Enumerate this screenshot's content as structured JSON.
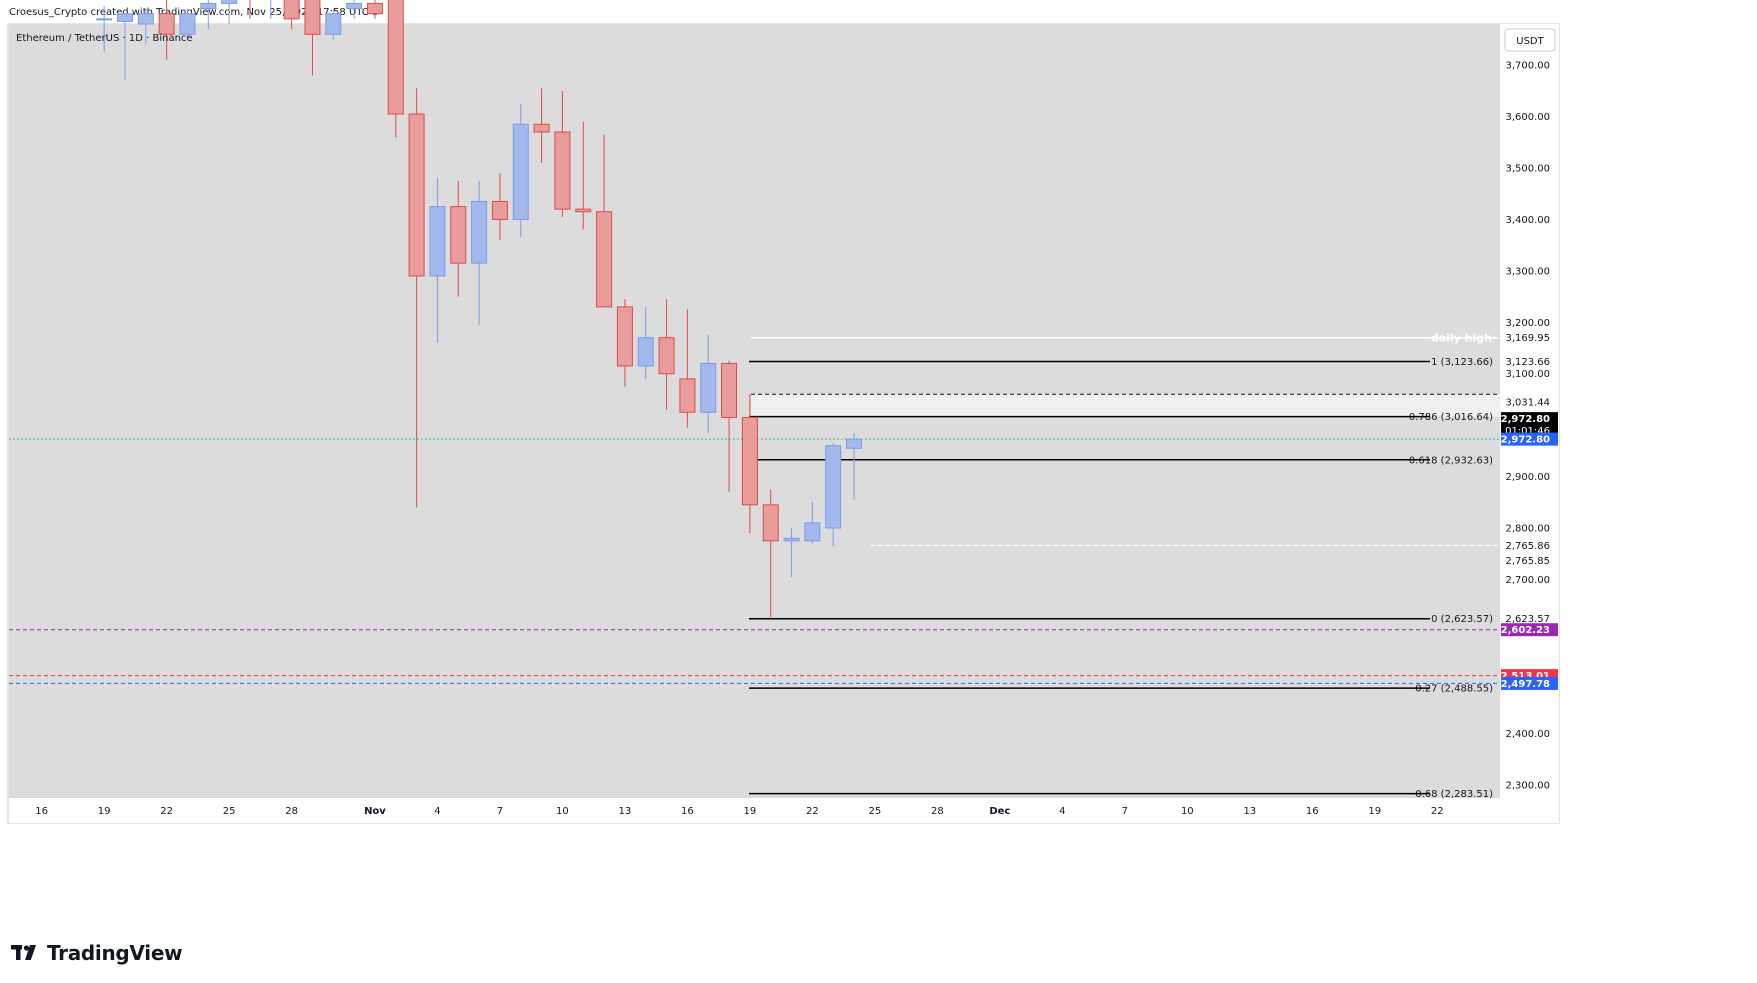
{
  "header": {
    "attribution": "Croesus_Crypto created with TradingView.com, Nov 25, 2025 17:58 UTC-5"
  },
  "footer": {
    "brand": "TradingView",
    "logo_icon": "tradingview-logo-icon"
  },
  "chart_data": {
    "type": "candlestick",
    "title": "Ethereum / TetherUS · 1D · Binance",
    "currency_button": "USDT",
    "colors": {
      "background": "#dcdcdc",
      "up": "#7c9be8",
      "up_fill": "#a3b8ec",
      "down": "#e04a4a",
      "down_fill": "#e89c9c"
    },
    "y_axis": {
      "range": [
        2275,
        3780
      ],
      "ticks": [
        "3,700.00",
        "3,600.00",
        "3,500.00",
        "3,400.00",
        "3,300.00",
        "3,200.00",
        "3,100.00",
        "2,900.00",
        "2,800.00",
        "2,700.00",
        "2,400.00",
        "2,300.00"
      ]
    },
    "x_axis": {
      "labels": [
        {
          "t": "16",
          "i": -1
        },
        {
          "t": "19",
          "i": 2
        },
        {
          "t": "22",
          "i": 5
        },
        {
          "t": "25",
          "i": 8
        },
        {
          "t": "28",
          "i": 11
        },
        {
          "t": "Nov",
          "i": 15
        },
        {
          "t": "4",
          "i": 18
        },
        {
          "t": "7",
          "i": 21
        },
        {
          "t": "10",
          "i": 24
        },
        {
          "t": "13",
          "i": 27
        },
        {
          "t": "16",
          "i": 30
        },
        {
          "t": "19",
          "i": 33
        },
        {
          "t": "22",
          "i": 36
        },
        {
          "t": "25",
          "i": 39
        },
        {
          "t": "28",
          "i": 42
        },
        {
          "t": "Dec",
          "i": 45
        },
        {
          "t": "4",
          "i": 48
        },
        {
          "t": "7",
          "i": 51
        },
        {
          "t": "10",
          "i": 54
        },
        {
          "t": "13",
          "i": 57
        },
        {
          "t": "16",
          "i": 60
        },
        {
          "t": "19",
          "i": 63
        },
        {
          "t": "22",
          "i": 66
        }
      ]
    },
    "candles": [
      {
        "i": 2,
        "o": 3790,
        "h": 3815,
        "l": 3725,
        "c": 3790
      },
      {
        "i": 3,
        "o": 3785,
        "h": 3800,
        "l": 3670,
        "c": 3800
      },
      {
        "i": 4,
        "o": 3780,
        "h": 3810,
        "l": 3740,
        "c": 3800
      },
      {
        "i": 5,
        "o": 3800,
        "h": 3860,
        "l": 3710,
        "c": 3760
      },
      {
        "i": 6,
        "o": 3760,
        "h": 3810,
        "l": 3750,
        "c": 3800
      },
      {
        "i": 7,
        "o": 3810,
        "h": 3830,
        "l": 3770,
        "c": 3820
      },
      {
        "i": 8,
        "o": 3820,
        "h": 3860,
        "l": 3780,
        "c": 3830
      },
      {
        "i": 9,
        "o": 3840,
        "h": 3900,
        "l": 3790,
        "c": 3830
      },
      {
        "i": 10,
        "o": 3830,
        "h": 3880,
        "l": 3790,
        "c": 3840
      },
      {
        "i": 11,
        "o": 3830,
        "h": 3860,
        "l": 3770,
        "c": 3790
      },
      {
        "i": 12,
        "o": 3830,
        "h": 3880,
        "l": 3680,
        "c": 3760
      },
      {
        "i": 13,
        "o": 3760,
        "h": 3810,
        "l": 3750,
        "c": 3800
      },
      {
        "i": 14,
        "o": 3810,
        "h": 3860,
        "l": 3790,
        "c": 3820
      },
      {
        "i": 15,
        "o": 3820,
        "h": 3830,
        "l": 3790,
        "c": 3800
      },
      {
        "i": 16,
        "o": 3900,
        "h": 3950,
        "l": 3560,
        "c": 3605
      },
      {
        "i": 17,
        "o": 3605,
        "h": 3655,
        "l": 2840,
        "c": 3290
      },
      {
        "i": 18,
        "o": 3290,
        "h": 3480,
        "l": 3160,
        "c": 3425
      },
      {
        "i": 19,
        "o": 3425,
        "h": 3475,
        "l": 3250,
        "c": 3315
      },
      {
        "i": 20,
        "o": 3315,
        "h": 3475,
        "l": 3195,
        "c": 3435
      },
      {
        "i": 21,
        "o": 3435,
        "h": 3490,
        "l": 3360,
        "c": 3400
      },
      {
        "i": 22,
        "o": 3400,
        "h": 3625,
        "l": 3365,
        "c": 3585
      },
      {
        "i": 23,
        "o": 3585,
        "h": 3655,
        "l": 3510,
        "c": 3570
      },
      {
        "i": 24,
        "o": 3570,
        "h": 3650,
        "l": 3405,
        "c": 3420
      },
      {
        "i": 25,
        "o": 3420,
        "h": 3590,
        "l": 3380,
        "c": 3415
      },
      {
        "i": 26,
        "o": 3415,
        "h": 3565,
        "l": 3230,
        "c": 3230
      },
      {
        "i": 27,
        "o": 3230,
        "h": 3245,
        "l": 3075,
        "c": 3115
      },
      {
        "i": 28,
        "o": 3115,
        "h": 3230,
        "l": 3090,
        "c": 3170
      },
      {
        "i": 29,
        "o": 3170,
        "h": 3245,
        "l": 3030,
        "c": 3100
      },
      {
        "i": 30,
        "o": 3090,
        "h": 3225,
        "l": 2995,
        "c": 3025
      },
      {
        "i": 31,
        "o": 3025,
        "h": 3175,
        "l": 2985,
        "c": 3120
      },
      {
        "i": 32,
        "o": 3120,
        "h": 3125,
        "l": 2870,
        "c": 3015
      },
      {
        "i": 33,
        "o": 3015,
        "h": 3060,
        "l": 2790,
        "c": 2845
      },
      {
        "i": 34,
        "o": 2845,
        "h": 2875,
        "l": 2623.57,
        "c": 2775
      },
      {
        "i": 35,
        "o": 2775,
        "h": 2800,
        "l": 2705,
        "c": 2780
      },
      {
        "i": 36,
        "o": 2775,
        "h": 2850,
        "l": 2770,
        "c": 2810
      },
      {
        "i": 37,
        "o": 2800,
        "h": 2965,
        "l": 2765,
        "c": 2960
      },
      {
        "i": 38,
        "o": 2955,
        "h": 2985,
        "l": 2855,
        "c": 2972.8
      }
    ],
    "fib_levels": [
      {
        "label": "1 (3,123.66)",
        "price": 3123.66,
        "axis": "3,123.66"
      },
      {
        "label": "0.786 (3,016.64)",
        "price": 3016.64
      },
      {
        "label": "0.618 (2,932.63)",
        "price": 2932.63
      },
      {
        "label": "0 (2,623.57)",
        "price": 2623.57,
        "axis": "2,623.57"
      },
      {
        "label": "-0.27 (2,488.55)",
        "price": 2488.55
      },
      {
        "label": "-0.68 (2,283.51)",
        "price": 2283.51
      }
    ],
    "daily_high": {
      "label": "daily high",
      "price": 3169.95,
      "axis": "3,169.95"
    },
    "zone": {
      "top": 3060,
      "bottom": 3016.64,
      "axis": "3,031.44"
    },
    "dashed_white": {
      "price": 2765.86,
      "axis_upper": "2,765.86",
      "axis_lower": "2,765.85"
    },
    "badges": [
      {
        "text": "2,972.80",
        "sub": "01:01:46",
        "price": 3000,
        "color": "#000000"
      },
      {
        "text": "2,972.80",
        "price": 2972.8,
        "color": "#2962ff"
      },
      {
        "text": "2,602.23",
        "price": 2602.23,
        "color": "#9c27b0"
      },
      {
        "text": "2,513.01",
        "price": 2513.01,
        "color": "#f23645"
      },
      {
        "text": "2,497.78",
        "price": 2497.78,
        "color": "#2962ff"
      }
    ],
    "horizontal_lines": [
      {
        "price": 2972.8,
        "color": "#26a69a",
        "style": "dotted"
      },
      {
        "price": 2602.23,
        "color": "#9c27b0",
        "style": "dashed"
      },
      {
        "price": 2513.01,
        "color": "#f23645",
        "style": "dashed"
      },
      {
        "price": 2497.78,
        "color": "#2962ff",
        "style": "dashed"
      }
    ]
  }
}
